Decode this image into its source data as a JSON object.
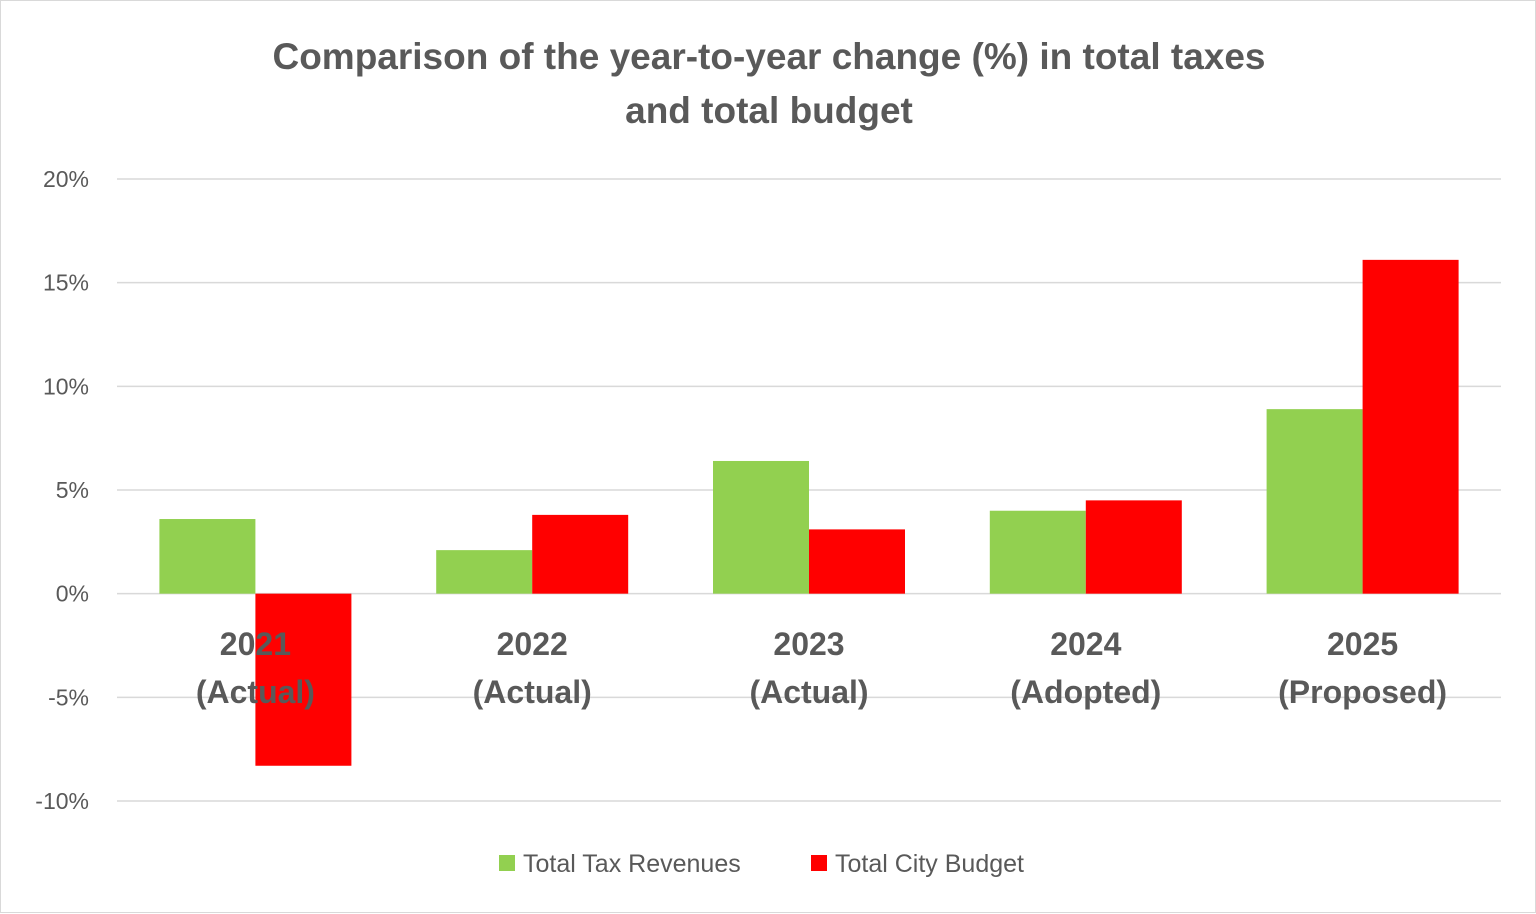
{
  "chart_data": {
    "type": "bar",
    "title_lines": [
      "Comparison of the year-to-year change (%) in total taxes",
      "and total budget"
    ],
    "categories": [
      [
        "2021",
        "(Actual)"
      ],
      [
        "2022",
        "(Actual)"
      ],
      [
        "2023",
        "(Actual)"
      ],
      [
        "2024",
        "(Adopted)"
      ],
      [
        "2025",
        "(Proposed)"
      ]
    ],
    "series": [
      {
        "name": "Total Tax Revenues",
        "color": "#92d050",
        "values": [
          3.6,
          2.1,
          6.4,
          4.0,
          8.9
        ]
      },
      {
        "name": "Total City Budget",
        "color": "#ff0000",
        "values": [
          -8.3,
          3.8,
          3.1,
          4.5,
          16.1
        ]
      }
    ],
    "ylim": [
      -10,
      20
    ],
    "yticks": [
      20,
      15,
      10,
      5,
      0,
      -5,
      -10
    ],
    "ytick_labels": [
      "20%",
      "15%",
      "10%",
      "5%",
      "0%",
      "-5%",
      "-10%"
    ],
    "grid": true,
    "legend_position": "bottom-center",
    "xlabel": "",
    "ylabel": ""
  }
}
